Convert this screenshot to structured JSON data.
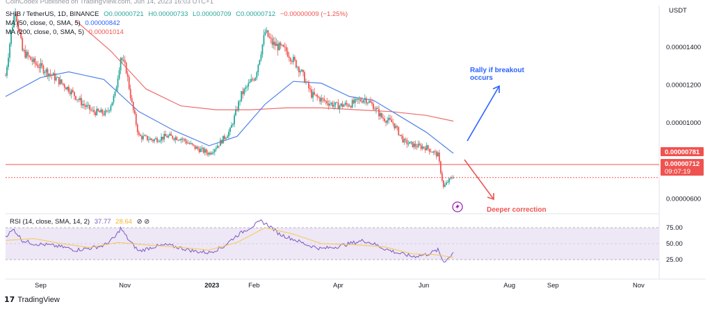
{
  "header_partial": "CoinCodex Published on TradingView.com, Jun 14, 2023 16:03 UTC+1",
  "legend": {
    "symbol": "SHIB / TetherUS, 1D, BINANCE",
    "open": "O0.00000721",
    "high": "H0.00000733",
    "low": "L0.00000709",
    "close": "C0.00000712",
    "change": "−0.00000009 (−1.25%)",
    "ma50": "MA (50, close, 0, SMA, 5)",
    "ma50_value": "0.00000842",
    "ma200": "MA (200, close, 0, SMA, 5)",
    "ma200_value": "0.00001014"
  },
  "axis_unit": "USDT",
  "price_ticks": [
    "0.00001400",
    "0.00001200",
    "0.00001000",
    "0.00000600"
  ],
  "time_ticks": [
    "Sep",
    "Nov",
    "2023",
    "Feb",
    "Apr",
    "Jun",
    "Aug",
    "Sep",
    "Nov"
  ],
  "tags": {
    "resistance": "0.00000781",
    "current_price": "0.00000712",
    "countdown": "09:07:19"
  },
  "annotations": {
    "rally": "Rally if breakout occurs",
    "deeper": "Deeper correction"
  },
  "rsi": {
    "legend": "RSI (14, close, SMA, 14, 2)",
    "value": "37.77",
    "sma_value": "28.64",
    "ticks": [
      "75.00",
      "50.00",
      "25.00"
    ]
  },
  "footer": "TradingView",
  "colors": {
    "up": "#26a69a",
    "down": "#ef5350",
    "ma50": "#4f83e8",
    "ma200": "#ef6b6b",
    "resistance": "#ef5350",
    "rsi_line": "#7e57c2",
    "rsi_sma": "#f7c948",
    "rsi_band": "#ede7f6",
    "rally_arrow": "#2962ff",
    "deeper_arrow": "#ef5350"
  },
  "chart_data": {
    "type": "candlestick",
    "title": "SHIB / TetherUS, 1D, BINANCE",
    "y_unit": "USDT",
    "ylim": [
      5.5e-06,
      1.62e-05
    ],
    "x_range": [
      "2022-08-07",
      "2023-11-20"
    ],
    "key_levels": {
      "resistance": 7.81e-06,
      "last_price": 7.12e-06
    },
    "price_path": [
      {
        "t": 0,
        "p": 1.25e-05
      },
      {
        "t": 4,
        "p": 1.48e-05
      },
      {
        "t": 7,
        "p": 1.6e-05
      },
      {
        "t": 12,
        "p": 1.38e-05
      },
      {
        "t": 20,
        "p": 1.32e-05
      },
      {
        "t": 28,
        "p": 1.28e-05
      },
      {
        "t": 35,
        "p": 1.24e-05
      },
      {
        "t": 45,
        "p": 1.18e-05
      },
      {
        "t": 55,
        "p": 1.1e-05
      },
      {
        "t": 62,
        "p": 1.06e-05
      },
      {
        "t": 72,
        "p": 1.05e-05
      },
      {
        "t": 78,
        "p": 1.15e-05
      },
      {
        "t": 82,
        "p": 1.35e-05
      },
      {
        "t": 86,
        "p": 1.28e-05
      },
      {
        "t": 90,
        "p": 1.1e-05
      },
      {
        "t": 95,
        "p": 9.3e-06
      },
      {
        "t": 105,
        "p": 9.1e-06
      },
      {
        "t": 115,
        "p": 9.3e-06
      },
      {
        "t": 125,
        "p": 9.2e-06
      },
      {
        "t": 135,
        "p": 8.7e-06
      },
      {
        "t": 145,
        "p": 8.4e-06
      },
      {
        "t": 152,
        "p": 8.9e-06
      },
      {
        "t": 160,
        "p": 9.6e-06
      },
      {
        "t": 168,
        "p": 1.15e-05
      },
      {
        "t": 178,
        "p": 1.25e-05
      },
      {
        "t": 185,
        "p": 1.48e-05
      },
      {
        "t": 190,
        "p": 1.42e-05
      },
      {
        "t": 200,
        "p": 1.38e-05
      },
      {
        "t": 210,
        "p": 1.28e-05
      },
      {
        "t": 218,
        "p": 1.15e-05
      },
      {
        "t": 226,
        "p": 1.12e-05
      },
      {
        "t": 236,
        "p": 1.09e-05
      },
      {
        "t": 246,
        "p": 1.1e-05
      },
      {
        "t": 256,
        "p": 1.13e-05
      },
      {
        "t": 262,
        "p": 1.09e-05
      },
      {
        "t": 268,
        "p": 1.03e-05
      },
      {
        "t": 276,
        "p": 1e-05
      },
      {
        "t": 284,
        "p": 9e-06
      },
      {
        "t": 292,
        "p": 8.8e-06
      },
      {
        "t": 300,
        "p": 8.7e-06
      },
      {
        "t": 308,
        "p": 8.3e-06
      },
      {
        "t": 312,
        "p": 6.6e-06
      },
      {
        "t": 315,
        "p": 6.9e-06
      },
      {
        "t": 319,
        "p": 7.2e-06
      }
    ],
    "ma50": [
      {
        "t": 0,
        "p": 1.14e-05
      },
      {
        "t": 25,
        "p": 1.24e-05
      },
      {
        "t": 45,
        "p": 1.27e-05
      },
      {
        "t": 70,
        "p": 1.23e-05
      },
      {
        "t": 95,
        "p": 1.06e-05
      },
      {
        "t": 120,
        "p": 9.6e-06
      },
      {
        "t": 145,
        "p": 8.8e-06
      },
      {
        "t": 165,
        "p": 9.3e-06
      },
      {
        "t": 185,
        "p": 1.1e-05
      },
      {
        "t": 205,
        "p": 1.22e-05
      },
      {
        "t": 225,
        "p": 1.21e-05
      },
      {
        "t": 245,
        "p": 1.14e-05
      },
      {
        "t": 262,
        "p": 1.12e-05
      },
      {
        "t": 280,
        "p": 1.04e-05
      },
      {
        "t": 300,
        "p": 9.5e-06
      },
      {
        "t": 319,
        "p": 8.4e-06
      }
    ],
    "ma200": [
      {
        "t": 50,
        "p": 1.54e-05
      },
      {
        "t": 75,
        "p": 1.38e-05
      },
      {
        "t": 100,
        "p": 1.18e-05
      },
      {
        "t": 125,
        "p": 1.09e-05
      },
      {
        "t": 150,
        "p": 1.07e-05
      },
      {
        "t": 175,
        "p": 1.07e-05
      },
      {
        "t": 200,
        "p": 1.08e-05
      },
      {
        "t": 225,
        "p": 1.08e-05
      },
      {
        "t": 250,
        "p": 1.07e-05
      },
      {
        "t": 275,
        "p": 1.06e-05
      },
      {
        "t": 300,
        "p": 1.04e-05
      },
      {
        "t": 319,
        "p": 1.01e-05
      }
    ],
    "rsi_series": [
      {
        "t": 0,
        "v": 62
      },
      {
        "t": 6,
        "v": 72
      },
      {
        "t": 12,
        "v": 55
      },
      {
        "t": 20,
        "v": 50
      },
      {
        "t": 30,
        "v": 48
      },
      {
        "t": 40,
        "v": 45
      },
      {
        "t": 50,
        "v": 40
      },
      {
        "t": 60,
        "v": 43
      },
      {
        "t": 70,
        "v": 47
      },
      {
        "t": 78,
        "v": 60
      },
      {
        "t": 82,
        "v": 74
      },
      {
        "t": 88,
        "v": 55
      },
      {
        "t": 95,
        "v": 38
      },
      {
        "t": 105,
        "v": 45
      },
      {
        "t": 115,
        "v": 48
      },
      {
        "t": 125,
        "v": 43
      },
      {
        "t": 135,
        "v": 38
      },
      {
        "t": 145,
        "v": 36
      },
      {
        "t": 155,
        "v": 45
      },
      {
        "t": 163,
        "v": 60
      },
      {
        "t": 170,
        "v": 70
      },
      {
        "t": 178,
        "v": 80
      },
      {
        "t": 182,
        "v": 85
      },
      {
        "t": 188,
        "v": 78
      },
      {
        "t": 195,
        "v": 65
      },
      {
        "t": 205,
        "v": 57
      },
      {
        "t": 215,
        "v": 48
      },
      {
        "t": 225,
        "v": 42
      },
      {
        "t": 235,
        "v": 45
      },
      {
        "t": 245,
        "v": 50
      },
      {
        "t": 255,
        "v": 55
      },
      {
        "t": 262,
        "v": 50
      },
      {
        "t": 270,
        "v": 42
      },
      {
        "t": 280,
        "v": 35
      },
      {
        "t": 290,
        "v": 30
      },
      {
        "t": 300,
        "v": 33
      },
      {
        "t": 308,
        "v": 40
      },
      {
        "t": 312,
        "v": 22
      },
      {
        "t": 316,
        "v": 28
      },
      {
        "t": 319,
        "v": 37.77
      }
    ],
    "rsi_sma_series": [
      {
        "t": 0,
        "v": 55
      },
      {
        "t": 20,
        "v": 58
      },
      {
        "t": 40,
        "v": 50
      },
      {
        "t": 60,
        "v": 44
      },
      {
        "t": 80,
        "v": 52
      },
      {
        "t": 100,
        "v": 48
      },
      {
        "t": 120,
        "v": 45
      },
      {
        "t": 145,
        "v": 40
      },
      {
        "t": 165,
        "v": 52
      },
      {
        "t": 185,
        "v": 75
      },
      {
        "t": 205,
        "v": 65
      },
      {
        "t": 225,
        "v": 50
      },
      {
        "t": 250,
        "v": 48
      },
      {
        "t": 270,
        "v": 45
      },
      {
        "t": 290,
        "v": 34
      },
      {
        "t": 305,
        "v": 33
      },
      {
        "t": 319,
        "v": 28.64
      }
    ],
    "rsi_levels": [
      75,
      50,
      25
    ]
  }
}
